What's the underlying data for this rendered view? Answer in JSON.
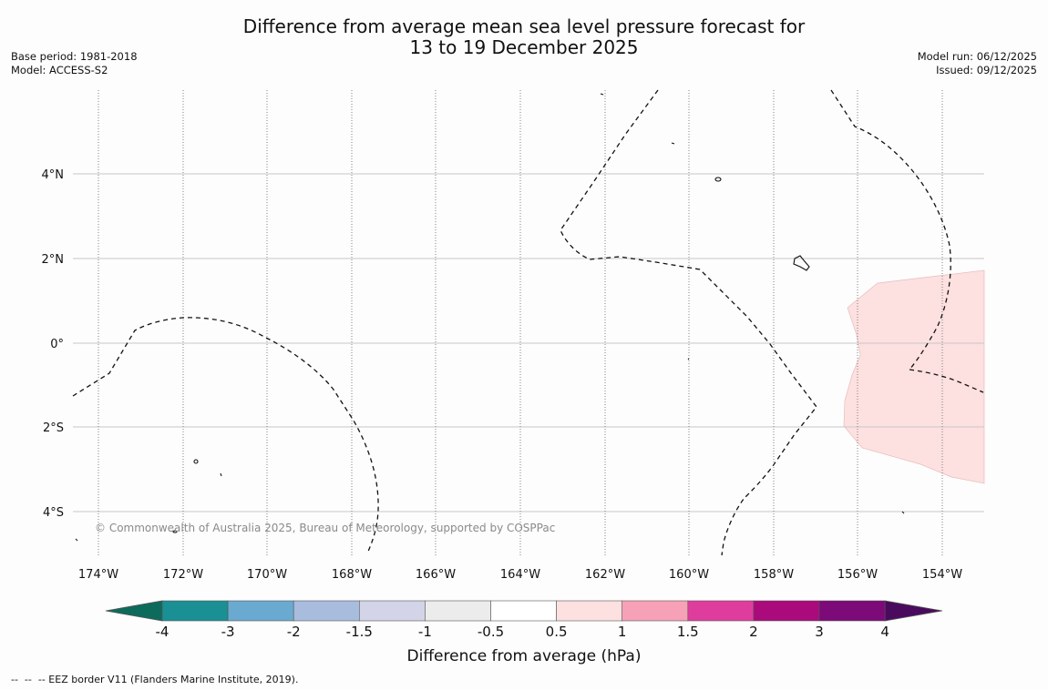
{
  "title_line1": "Difference from average mean sea level pressure forecast for",
  "title_line2": "13 to 19 December 2025",
  "base_period": "Base period: 1981-2018",
  "model": "Model: ACCESS-S2",
  "model_run": "Model run: 06/12/2025",
  "issued": "Issued: 09/12/2025",
  "latitude_labels": [
    "4°N",
    "2°N",
    "0°",
    "2°S",
    "4°S"
  ],
  "longitude_labels": [
    "174°W",
    "172°W",
    "170°W",
    "168°W",
    "166°W",
    "164°W",
    "162°W",
    "160°W",
    "158°W",
    "156°W",
    "154°W"
  ],
  "copyright": "© Commonwealth of Australia 2025, Bureau of Meteorology, supported by COSPPac",
  "colorbar": {
    "title": "Difference from average (hPa)",
    "tick_labels": [
      "-4",
      "-3",
      "-2",
      "-1.5",
      "-1",
      "-0.5",
      "0.5",
      "1",
      "1.5",
      "2",
      "3",
      "4"
    ],
    "bin_colors": [
      "#1a8f94",
      "#6aaad0",
      "#a8bcde",
      "#d4d4e8",
      "#ececec",
      "#ffffff",
      "#fde0e0",
      "#f7a1b8",
      "#df3d9d",
      "#ab0a7c",
      "#7c0a78"
    ],
    "low_extend_color": "#0d6b5c",
    "high_extend_color": "#4a0b5e"
  },
  "legend_eez": "--  --  -- EEZ border V11 (Flanders Marine Institute, 2019)."
}
